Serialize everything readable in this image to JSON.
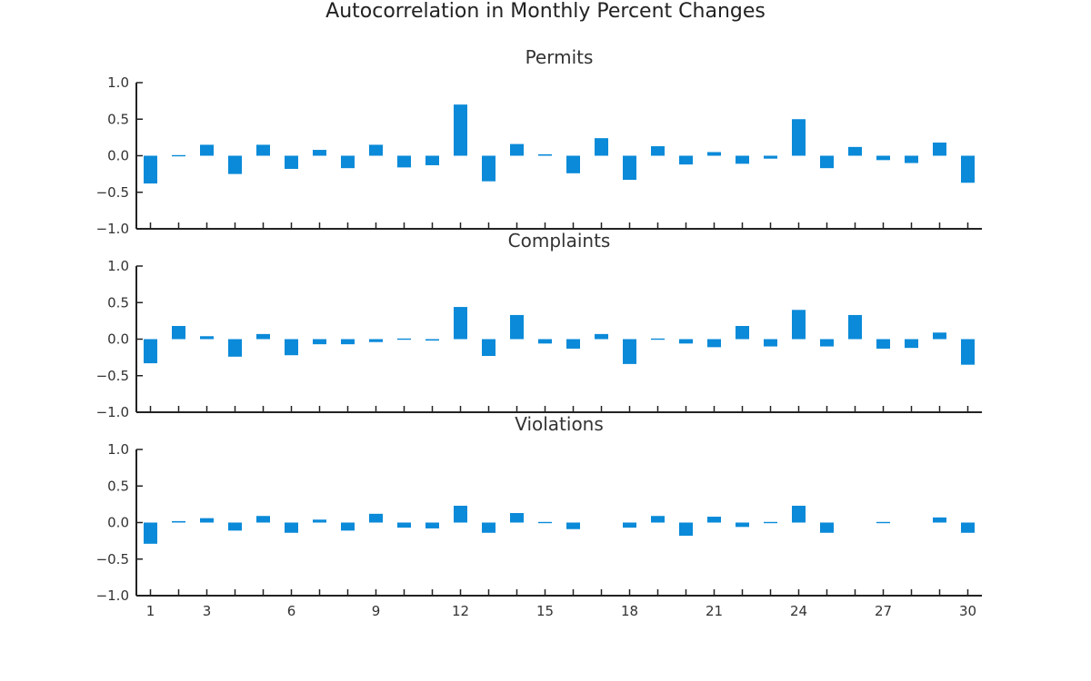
{
  "chart_data": {
    "type": "bar",
    "title": "Autocorrelation in Monthly Percent Changes",
    "color": "#0a8ad8",
    "lags": [
      1,
      2,
      3,
      4,
      5,
      6,
      7,
      8,
      9,
      10,
      11,
      12,
      13,
      14,
      15,
      16,
      17,
      18,
      19,
      20,
      21,
      22,
      23,
      24,
      25,
      26,
      27,
      28,
      29,
      30
    ],
    "x_tick_labels": [
      "1",
      "3",
      "6",
      "9",
      "12",
      "15",
      "18",
      "21",
      "24",
      "27",
      "30"
    ],
    "ylim": [
      -1.0,
      1.0
    ],
    "y_ticks": [
      1.0,
      0.5,
      0.0,
      -0.5,
      -1.0
    ],
    "y_tick_labels": [
      "1.0",
      "0.5",
      "0.0",
      "−0.5",
      "−1.0"
    ],
    "panels": [
      {
        "title": "Permits",
        "values": [
          -0.38,
          -0.01,
          0.15,
          -0.25,
          0.15,
          -0.18,
          0.08,
          -0.17,
          0.15,
          -0.16,
          -0.13,
          0.7,
          -0.35,
          0.16,
          0.02,
          -0.24,
          0.24,
          -0.33,
          0.13,
          -0.12,
          0.05,
          -0.11,
          -0.04,
          0.5,
          -0.17,
          0.12,
          -0.06,
          -0.1,
          0.18,
          -0.37
        ]
      },
      {
        "title": "Complaints",
        "values": [
          -0.33,
          0.18,
          0.04,
          -0.24,
          0.07,
          -0.22,
          -0.07,
          -0.07,
          -0.04,
          -0.01,
          -0.02,
          0.44,
          -0.23,
          0.33,
          -0.06,
          -0.13,
          0.07,
          -0.34,
          -0.01,
          -0.06,
          -0.11,
          0.18,
          -0.1,
          0.4,
          -0.1,
          0.33,
          -0.13,
          -0.12,
          0.09,
          -0.35
        ]
      },
      {
        "title": "Violations",
        "values": [
          -0.29,
          0.02,
          0.06,
          -0.11,
          0.09,
          -0.14,
          0.04,
          -0.11,
          0.12,
          -0.07,
          -0.08,
          0.23,
          -0.14,
          0.13,
          -0.01,
          -0.09,
          0.0,
          -0.07,
          0.09,
          -0.18,
          0.08,
          -0.06,
          -0.01,
          0.23,
          -0.14,
          0.0,
          -0.01,
          0.0,
          0.07,
          -0.14
        ]
      }
    ]
  }
}
